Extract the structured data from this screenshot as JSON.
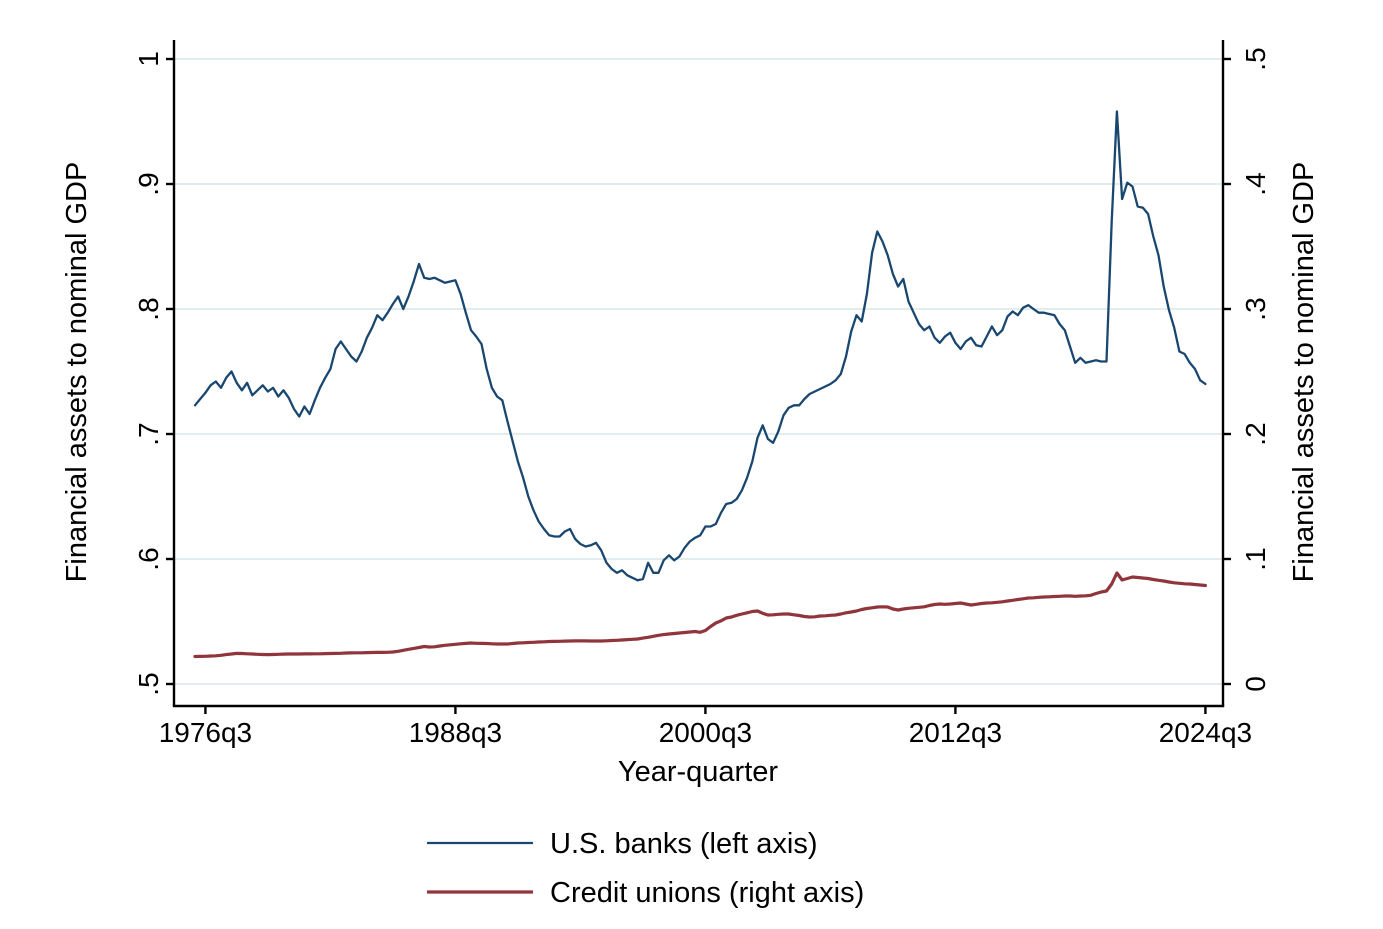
{
  "axes": {
    "left_title": "Financial assets to nominal GDP",
    "right_title": "Financial assets to nominal GDP",
    "x_title": "Year-quarter"
  },
  "legend": {
    "entries": [
      {
        "label": "U.S. banks (left axis)"
      },
      {
        "label": "Credit unions (right axis)"
      }
    ]
  },
  "chart_data": {
    "type": "line",
    "title": "",
    "xlabel": "Year-quarter",
    "ylabel_left": "Financial assets to nominal GDP",
    "ylabel_right": "Financial assets to nominal GDP",
    "background": "#ffffff",
    "grid": "horizontal",
    "gridline_color": "#e2edf0",
    "axis_color": "#000000",
    "legend_position": "bottom-center",
    "x_start": "1976q1",
    "x_end": "2024q3",
    "x_ticks": {
      "labels": [
        "1976q3",
        "1988q3",
        "2000q3",
        "2012q3",
        "2024q3"
      ],
      "quarter_index": [
        2,
        50,
        98,
        146,
        194
      ]
    },
    "y_left": {
      "range": [
        0.5,
        1.0
      ],
      "ticks": [
        1.0,
        0.9,
        0.8,
        0.7,
        0.6,
        0.5
      ],
      "tick_labels": [
        "1",
        ".9",
        ".8",
        ".7",
        ".6",
        ".5"
      ]
    },
    "y_right": {
      "range": [
        0.0,
        0.5
      ],
      "ticks": [
        0.5,
        0.4,
        0.3,
        0.2,
        0.1,
        0.0
      ],
      "tick_labels": [
        ".5",
        ".4",
        ".3",
        ".2",
        ".1",
        "0"
      ]
    },
    "series": [
      {
        "name": "U.S. banks (left axis)",
        "axis": "left",
        "color": "#1a476f",
        "line_width": 2.3,
        "values": [
          0.723,
          0.728,
          0.733,
          0.739,
          0.742,
          0.737,
          0.745,
          0.75,
          0.741,
          0.735,
          0.741,
          0.731,
          0.735,
          0.739,
          0.734,
          0.737,
          0.73,
          0.735,
          0.729,
          0.72,
          0.714,
          0.722,
          0.716,
          0.727,
          0.737,
          0.745,
          0.752,
          0.768,
          0.774,
          0.768,
          0.762,
          0.758,
          0.766,
          0.777,
          0.785,
          0.795,
          0.791,
          0.797,
          0.804,
          0.81,
          0.8,
          0.81,
          0.822,
          0.836,
          0.825,
          0.824,
          0.825,
          0.823,
          0.821,
          0.822,
          0.823,
          0.812,
          0.797,
          0.783,
          0.778,
          0.772,
          0.752,
          0.737,
          0.73,
          0.727,
          0.71,
          0.694,
          0.678,
          0.665,
          0.65,
          0.639,
          0.63,
          0.624,
          0.619,
          0.618,
          0.618,
          0.622,
          0.624,
          0.616,
          0.612,
          0.61,
          0.611,
          0.613,
          0.607,
          0.597,
          0.592,
          0.589,
          0.591,
          0.587,
          0.585,
          0.583,
          0.584,
          0.597,
          0.589,
          0.589,
          0.599,
          0.603,
          0.599,
          0.602,
          0.609,
          0.614,
          0.617,
          0.619,
          0.626,
          0.626,
          0.628,
          0.637,
          0.644,
          0.645,
          0.648,
          0.655,
          0.665,
          0.678,
          0.697,
          0.707,
          0.696,
          0.693,
          0.702,
          0.715,
          0.721,
          0.723,
          0.723,
          0.728,
          0.732,
          0.734,
          0.736,
          0.738,
          0.74,
          0.743,
          0.748,
          0.762,
          0.782,
          0.795,
          0.79,
          0.812,
          0.845,
          0.862,
          0.854,
          0.843,
          0.828,
          0.818,
          0.824,
          0.806,
          0.797,
          0.788,
          0.783,
          0.786,
          0.777,
          0.773,
          0.778,
          0.781,
          0.773,
          0.768,
          0.774,
          0.777,
          0.771,
          0.77,
          0.778,
          0.786,
          0.779,
          0.783,
          0.794,
          0.798,
          0.795,
          0.801,
          0.803,
          0.8,
          0.797,
          0.797,
          0.796,
          0.795,
          0.788,
          0.783,
          0.77,
          0.757,
          0.761,
          0.757,
          0.758,
          0.759,
          0.758,
          0.758,
          0.87,
          0.958,
          0.888,
          0.901,
          0.898,
          0.882,
          0.881,
          0.876,
          0.858,
          0.843,
          0.818,
          0.799,
          0.785,
          0.766,
          0.764,
          0.757,
          0.752,
          0.743,
          0.74
        ]
      },
      {
        "name": "Credit unions (right axis)",
        "axis": "right",
        "color": "#90353b",
        "line_width": 3.2,
        "values": [
          0.022,
          0.0221,
          0.0222,
          0.0224,
          0.0226,
          0.023,
          0.0235,
          0.024,
          0.0245,
          0.0244,
          0.0242,
          0.024,
          0.0238,
          0.0236,
          0.0235,
          0.0236,
          0.0238,
          0.0239,
          0.024,
          0.024,
          0.024,
          0.0241,
          0.0241,
          0.0242,
          0.0242,
          0.0243,
          0.0244,
          0.0245,
          0.0246,
          0.0248,
          0.0249,
          0.025,
          0.025,
          0.0251,
          0.0252,
          0.0253,
          0.0253,
          0.0254,
          0.0256,
          0.0262,
          0.027,
          0.0278,
          0.0285,
          0.0292,
          0.03,
          0.0296,
          0.0298,
          0.0304,
          0.031,
          0.0314,
          0.0318,
          0.0322,
          0.0325,
          0.0328,
          0.0326,
          0.0325,
          0.0324,
          0.0322,
          0.032,
          0.032,
          0.032,
          0.0324,
          0.0328,
          0.033,
          0.0332,
          0.0334,
          0.0336,
          0.0338,
          0.034,
          0.0341,
          0.0342,
          0.0343,
          0.0344,
          0.0345,
          0.0346,
          0.0345,
          0.0344,
          0.0344,
          0.0344,
          0.0346,
          0.0348,
          0.035,
          0.0352,
          0.0355,
          0.0358,
          0.036,
          0.0367,
          0.0374,
          0.0382,
          0.039,
          0.0395,
          0.04,
          0.0404,
          0.0408,
          0.0412,
          0.0416,
          0.042,
          0.0414,
          0.0428,
          0.046,
          0.0488,
          0.0505,
          0.0528,
          0.0536,
          0.055,
          0.056,
          0.057,
          0.058,
          0.0584,
          0.0566,
          0.0552,
          0.0554,
          0.0558,
          0.056,
          0.056,
          0.0554,
          0.0548,
          0.054,
          0.0536,
          0.0538,
          0.0544,
          0.0546,
          0.055,
          0.0552,
          0.056,
          0.057,
          0.0576,
          0.0584,
          0.0596,
          0.0604,
          0.061,
          0.0616,
          0.0618,
          0.0616,
          0.06,
          0.0592,
          0.06,
          0.0606,
          0.061,
          0.0614,
          0.0618,
          0.0628,
          0.0636,
          0.064,
          0.0638,
          0.064,
          0.0644,
          0.0648,
          0.064,
          0.0632,
          0.0638,
          0.0644,
          0.0648,
          0.065,
          0.0654,
          0.0658,
          0.0664,
          0.067,
          0.0676,
          0.0682,
          0.0688,
          0.069,
          0.0694,
          0.0696,
          0.0698,
          0.07,
          0.0702,
          0.0704,
          0.0704,
          0.0702,
          0.0704,
          0.0706,
          0.071,
          0.0724,
          0.0736,
          0.0744,
          0.08,
          0.0888,
          0.0832,
          0.0844,
          0.0856,
          0.0852,
          0.0848,
          0.0844,
          0.0836,
          0.083,
          0.0824,
          0.0816,
          0.081,
          0.0806,
          0.0802,
          0.08,
          0.0796,
          0.0792,
          0.0788
        ]
      }
    ]
  }
}
